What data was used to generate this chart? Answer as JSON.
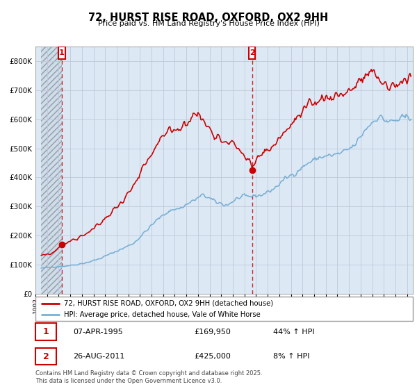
{
  "title": "72, HURST RISE ROAD, OXFORD, OX2 9HH",
  "subtitle": "Price paid vs. HM Land Registry's House Price Index (HPI)",
  "legend_line1": "72, HURST RISE ROAD, OXFORD, OX2 9HH (detached house)",
  "legend_line2": "HPI: Average price, detached house, Vale of White Horse",
  "footnote": "Contains HM Land Registry data © Crown copyright and database right 2025.\nThis data is licensed under the Open Government Licence v3.0.",
  "sale1_label": "1",
  "sale1_date": "07-APR-1995",
  "sale1_price": "£169,950",
  "sale1_hpi": "44% ↑ HPI",
  "sale2_label": "2",
  "sale2_date": "26-AUG-2011",
  "sale2_price": "£425,000",
  "sale2_hpi": "8% ↑ HPI",
  "ylim": [
    0,
    850000
  ],
  "yticks": [
    0,
    100000,
    200000,
    300000,
    400000,
    500000,
    600000,
    700000,
    800000
  ],
  "sale_color": "#cc0000",
  "hpi_color": "#7ab0d4",
  "bg_color": "#dce9f5",
  "sale1_x": 1995.27,
  "sale2_x": 2011.65,
  "sale1_y": 169950,
  "sale2_y": 425000,
  "xmin": 1993.5,
  "xmax": 2025.5,
  "grid_color": "#c0c8d8"
}
